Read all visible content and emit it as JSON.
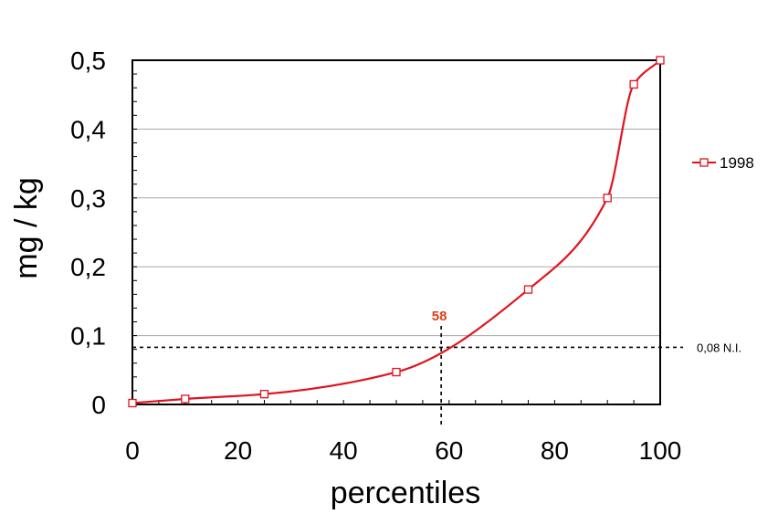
{
  "chart_data": {
    "type": "line",
    "xlabel": "percentiles",
    "ylabel": "mg / kg",
    "xlim": [
      0,
      100
    ],
    "ylim": [
      0,
      0.5
    ],
    "x_ticks": [
      "0",
      "20",
      "40",
      "60",
      "80",
      "100"
    ],
    "y_ticks": [
      "0",
      "0,1",
      "0,2",
      "0,3",
      "0,4",
      "0,5"
    ],
    "grid": "horizontal",
    "legend": "right",
    "series": [
      {
        "name": "1998",
        "color": "#e0141e",
        "points": [
          {
            "x": 0,
            "y": 0.002
          },
          {
            "x": 10,
            "y": 0.008
          },
          {
            "x": 25,
            "y": 0.015
          },
          {
            "x": 50,
            "y": 0.047
          },
          {
            "x": 75,
            "y": 0.167
          },
          {
            "x": 90,
            "y": 0.3
          },
          {
            "x": 95,
            "y": 0.465
          },
          {
            "x": 100,
            "y": 0.5
          }
        ]
      }
    ],
    "reference_line": {
      "y": 0.083,
      "label": "0,08 N.I."
    },
    "marker_line": {
      "x": 58.5,
      "label": "58",
      "color": "#e0401e"
    }
  }
}
